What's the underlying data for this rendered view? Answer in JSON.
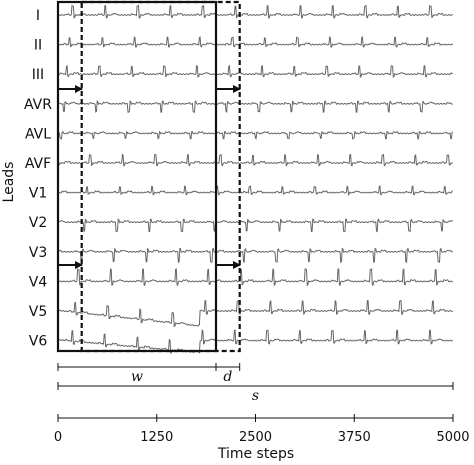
{
  "chart_data": {
    "type": "line",
    "ylabel": "Leads",
    "xlabel": "Time steps",
    "xlim": [
      0,
      5000
    ],
    "xticks": [
      "0",
      "1250",
      "2500",
      "3750",
      "5000"
    ],
    "leads": [
      "I",
      "II",
      "III",
      "AVR",
      "AVL",
      "AVF",
      "V1",
      "V2",
      "V3",
      "V4",
      "V5",
      "V6"
    ],
    "window": {
      "label": "w",
      "start": 0,
      "end": 2000
    },
    "shifted_window": {
      "start": 300,
      "end": 2300
    },
    "stride": {
      "label": "d",
      "start": 2000,
      "end": 2300
    },
    "span": {
      "label": "s",
      "start": 0,
      "end": 5000
    }
  }
}
